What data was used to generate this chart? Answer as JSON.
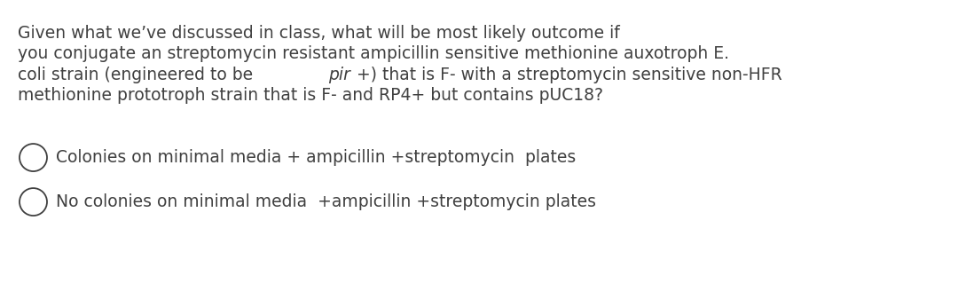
{
  "background_color": "#ffffff",
  "text_color": "#404040",
  "line1": "Given what we’ve discussed in class, what will be most likely outcome if",
  "line2": "you conjugate an streptomycin resistant ampicillin sensitive methionine auxotroph E.",
  "line3_pre": "coli strain (engineered to be ",
  "line3_italic": "pir",
  "line3_post": "+) that is F- with a streptomycin sensitive non-HFR",
  "line4": "methionine prototroph strain that is F- and RP4+ but contains pUC18?",
  "option1": "Colonies on minimal media + ampicillin +streptomycin  plates",
  "option2": "No colonies on minimal media  +ampicillin +streptomycin plates",
  "font_size": 13.5,
  "option_font_size": 13.5,
  "fig_width": 10.8,
  "fig_height": 3.37,
  "dpi": 100
}
